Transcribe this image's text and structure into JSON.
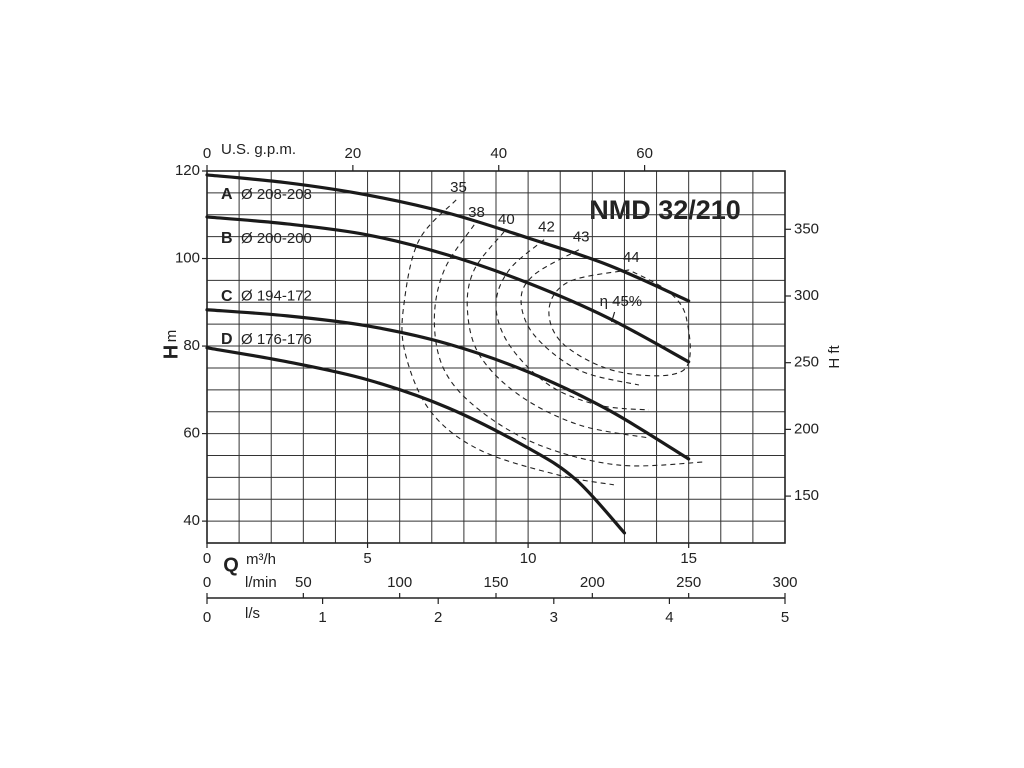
{
  "chart_data": {
    "type": "line",
    "title": "NMD 32/210",
    "x_label": "Q",
    "x_unit": "m³/h",
    "xlim": [
      0,
      18
    ],
    "xticks": [
      0,
      5,
      10,
      15
    ],
    "x_gridlines": [
      0,
      1,
      2,
      3,
      4,
      5,
      6,
      7,
      8,
      9,
      10,
      11,
      12,
      13,
      14,
      15,
      16,
      17,
      18
    ],
    "y_label": "H",
    "y_unit": "m",
    "ylim": [
      35,
      120
    ],
    "yticks": [
      40,
      60,
      80,
      100,
      120
    ],
    "y_gridlines": [
      35,
      40,
      45,
      50,
      55,
      60,
      65,
      70,
      75,
      80,
      85,
      90,
      95,
      100,
      105,
      110,
      115,
      120
    ],
    "y2_label": "H ft",
    "y2lim": [
      114.83,
      393.7
    ],
    "y2ticks": [
      150,
      200,
      250,
      300,
      350
    ],
    "top_axis": {
      "label": "U.S. g.p.m.",
      "lim": [
        0,
        79.25
      ],
      "ticks": [
        0,
        20,
        40,
        60
      ]
    },
    "lmin_axis": {
      "label": "l/min",
      "lim": [
        0,
        300
      ],
      "ticks": [
        0,
        50,
        100,
        150,
        200,
        250,
        300
      ]
    },
    "ls_axis": {
      "label": "l/s",
      "lim": [
        0,
        5
      ],
      "ticks": [
        0,
        1,
        2,
        3,
        4,
        5
      ]
    },
    "grid": true,
    "series": [
      {
        "label": "A",
        "name": "Ø 208-208",
        "color": "#1a1a1a",
        "x": [
          0,
          2.5,
          5,
          7.5,
          10,
          12.5,
          15
        ],
        "values": [
          119.1,
          117.3,
          114.5,
          110.4,
          104.7,
          98.5,
          90.3
        ]
      },
      {
        "label": "B",
        "name": "Ø 200-200",
        "color": "#1a1a1a",
        "x": [
          0,
          2.5,
          5,
          7.5,
          10,
          12.5,
          15
        ],
        "values": [
          109.5,
          107.9,
          105.4,
          100.8,
          94.4,
          86.4,
          76.4
        ]
      },
      {
        "label": "C",
        "name": "Ø 194-172",
        "color": "#1a1a1a",
        "x": [
          0,
          2.5,
          5,
          7.5,
          10,
          12.5,
          15
        ],
        "values": [
          88.3,
          86.9,
          84.6,
          80.5,
          74.1,
          65.4,
          54.2
        ]
      },
      {
        "label": "D",
        "name": "Ø 176-176",
        "color": "#1a1a1a",
        "x": [
          0,
          2.5,
          5,
          7.5,
          10,
          11.5,
          13
        ],
        "values": [
          79.6,
          76.4,
          72.3,
          65.9,
          56.7,
          49.4,
          37.3
        ]
      }
    ],
    "efficiency_curves": [
      {
        "label": "35",
        "x": [
          7.76,
          6.61,
          6.15,
          6.15,
          6.93,
          8.48,
          10.96,
          12.67
        ],
        "values": [
          113.4,
          104.3,
          90.5,
          79.1,
          65.4,
          56.3,
          50.5,
          48.3
        ]
      },
      {
        "label": "38",
        "x": [
          8.32,
          7.39,
          7.08,
          7.39,
          8.48,
          10.34,
          12.83,
          15.47
        ],
        "values": [
          107.7,
          97.4,
          86,
          74.5,
          65.4,
          57.4,
          52.8,
          53.5
        ]
      },
      {
        "label": "40",
        "x": [
          9.25,
          8.32,
          8.11,
          8.48,
          9.72,
          11.58,
          13.76
        ],
        "values": [
          106.1,
          97.4,
          88.3,
          78,
          68.8,
          62,
          59
        ]
      },
      {
        "label": "42",
        "x": [
          10.5,
          9.41,
          9.0,
          9.41,
          10.65,
          12.2,
          13.76
        ],
        "values": [
          104.3,
          97.4,
          89.4,
          80.3,
          71.1,
          66.5,
          65.4
        ]
      },
      {
        "label": "43",
        "x": [
          11.58,
          10.19,
          9.78,
          10.19,
          11.58,
          13.45
        ],
        "values": [
          102,
          96.3,
          90.5,
          82.5,
          74.5,
          71.1
        ]
      },
      {
        "label": "44",
        "x": [
          13.14,
          11.27,
          10.65,
          11.12,
          12.83,
          14.84,
          14.94,
          14.38,
          13.14
        ],
        "values": [
          97.4,
          94.7,
          88.3,
          80.3,
          74.1,
          74.5,
          86,
          92.4,
          97.4
        ]
      },
      {
        "label": "η 45%",
        "x": [
          12.6
        ],
        "values": [
          85.5
        ]
      }
    ]
  }
}
